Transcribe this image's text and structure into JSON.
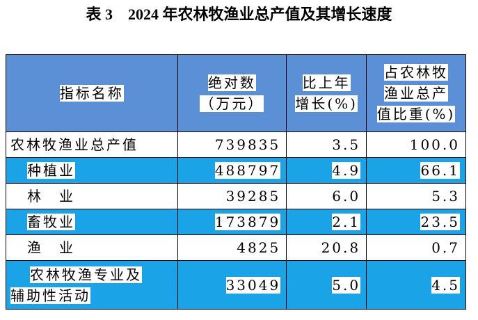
{
  "title": "表 3　2024 年农林牧渔业总产值及其增长速度",
  "table": {
    "header": [
      [
        "指标名称"
      ],
      [
        "绝对数",
        "（万元）"
      ],
      [
        "比上年",
        "增长(%)"
      ],
      [
        "占农林牧",
        "渔业总产",
        "值比重(%)"
      ]
    ],
    "rows": [
      [
        [
          "农林牧渔业总产值"
        ],
        "739835",
        "3.5",
        "100.0"
      ],
      [
        [
          "种植业"
        ],
        "488797",
        "4.9",
        "66.1"
      ],
      [
        [
          "林　业"
        ],
        "39285",
        "6.0",
        "5.3"
      ],
      [
        [
          "畜牧业"
        ],
        "173879",
        "2.1",
        "23.5"
      ],
      [
        [
          "渔　业"
        ],
        "4825",
        "20.8",
        "0.7"
      ],
      [
        [
          "农林牧渔专业及",
          "辅助性活动"
        ],
        "33049",
        "5.0",
        "4.5"
      ]
    ]
  }
}
